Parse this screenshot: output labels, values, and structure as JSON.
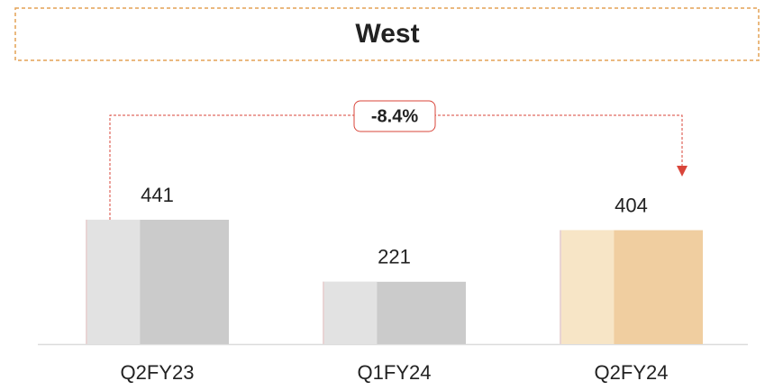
{
  "chart_data": {
    "type": "bar",
    "title": "West",
    "categories": [
      "Q2FY23",
      "Q1FY24",
      "Q2FY24"
    ],
    "values": [
      441,
      221,
      404
    ],
    "colors": [
      [
        "#e2e2e2",
        "#cbcbcb"
      ],
      [
        "#e2e2e2",
        "#cbcbcb"
      ],
      [
        "#f7e5c6",
        "#f0cea0"
      ]
    ],
    "annotation": "-8.4%"
  }
}
